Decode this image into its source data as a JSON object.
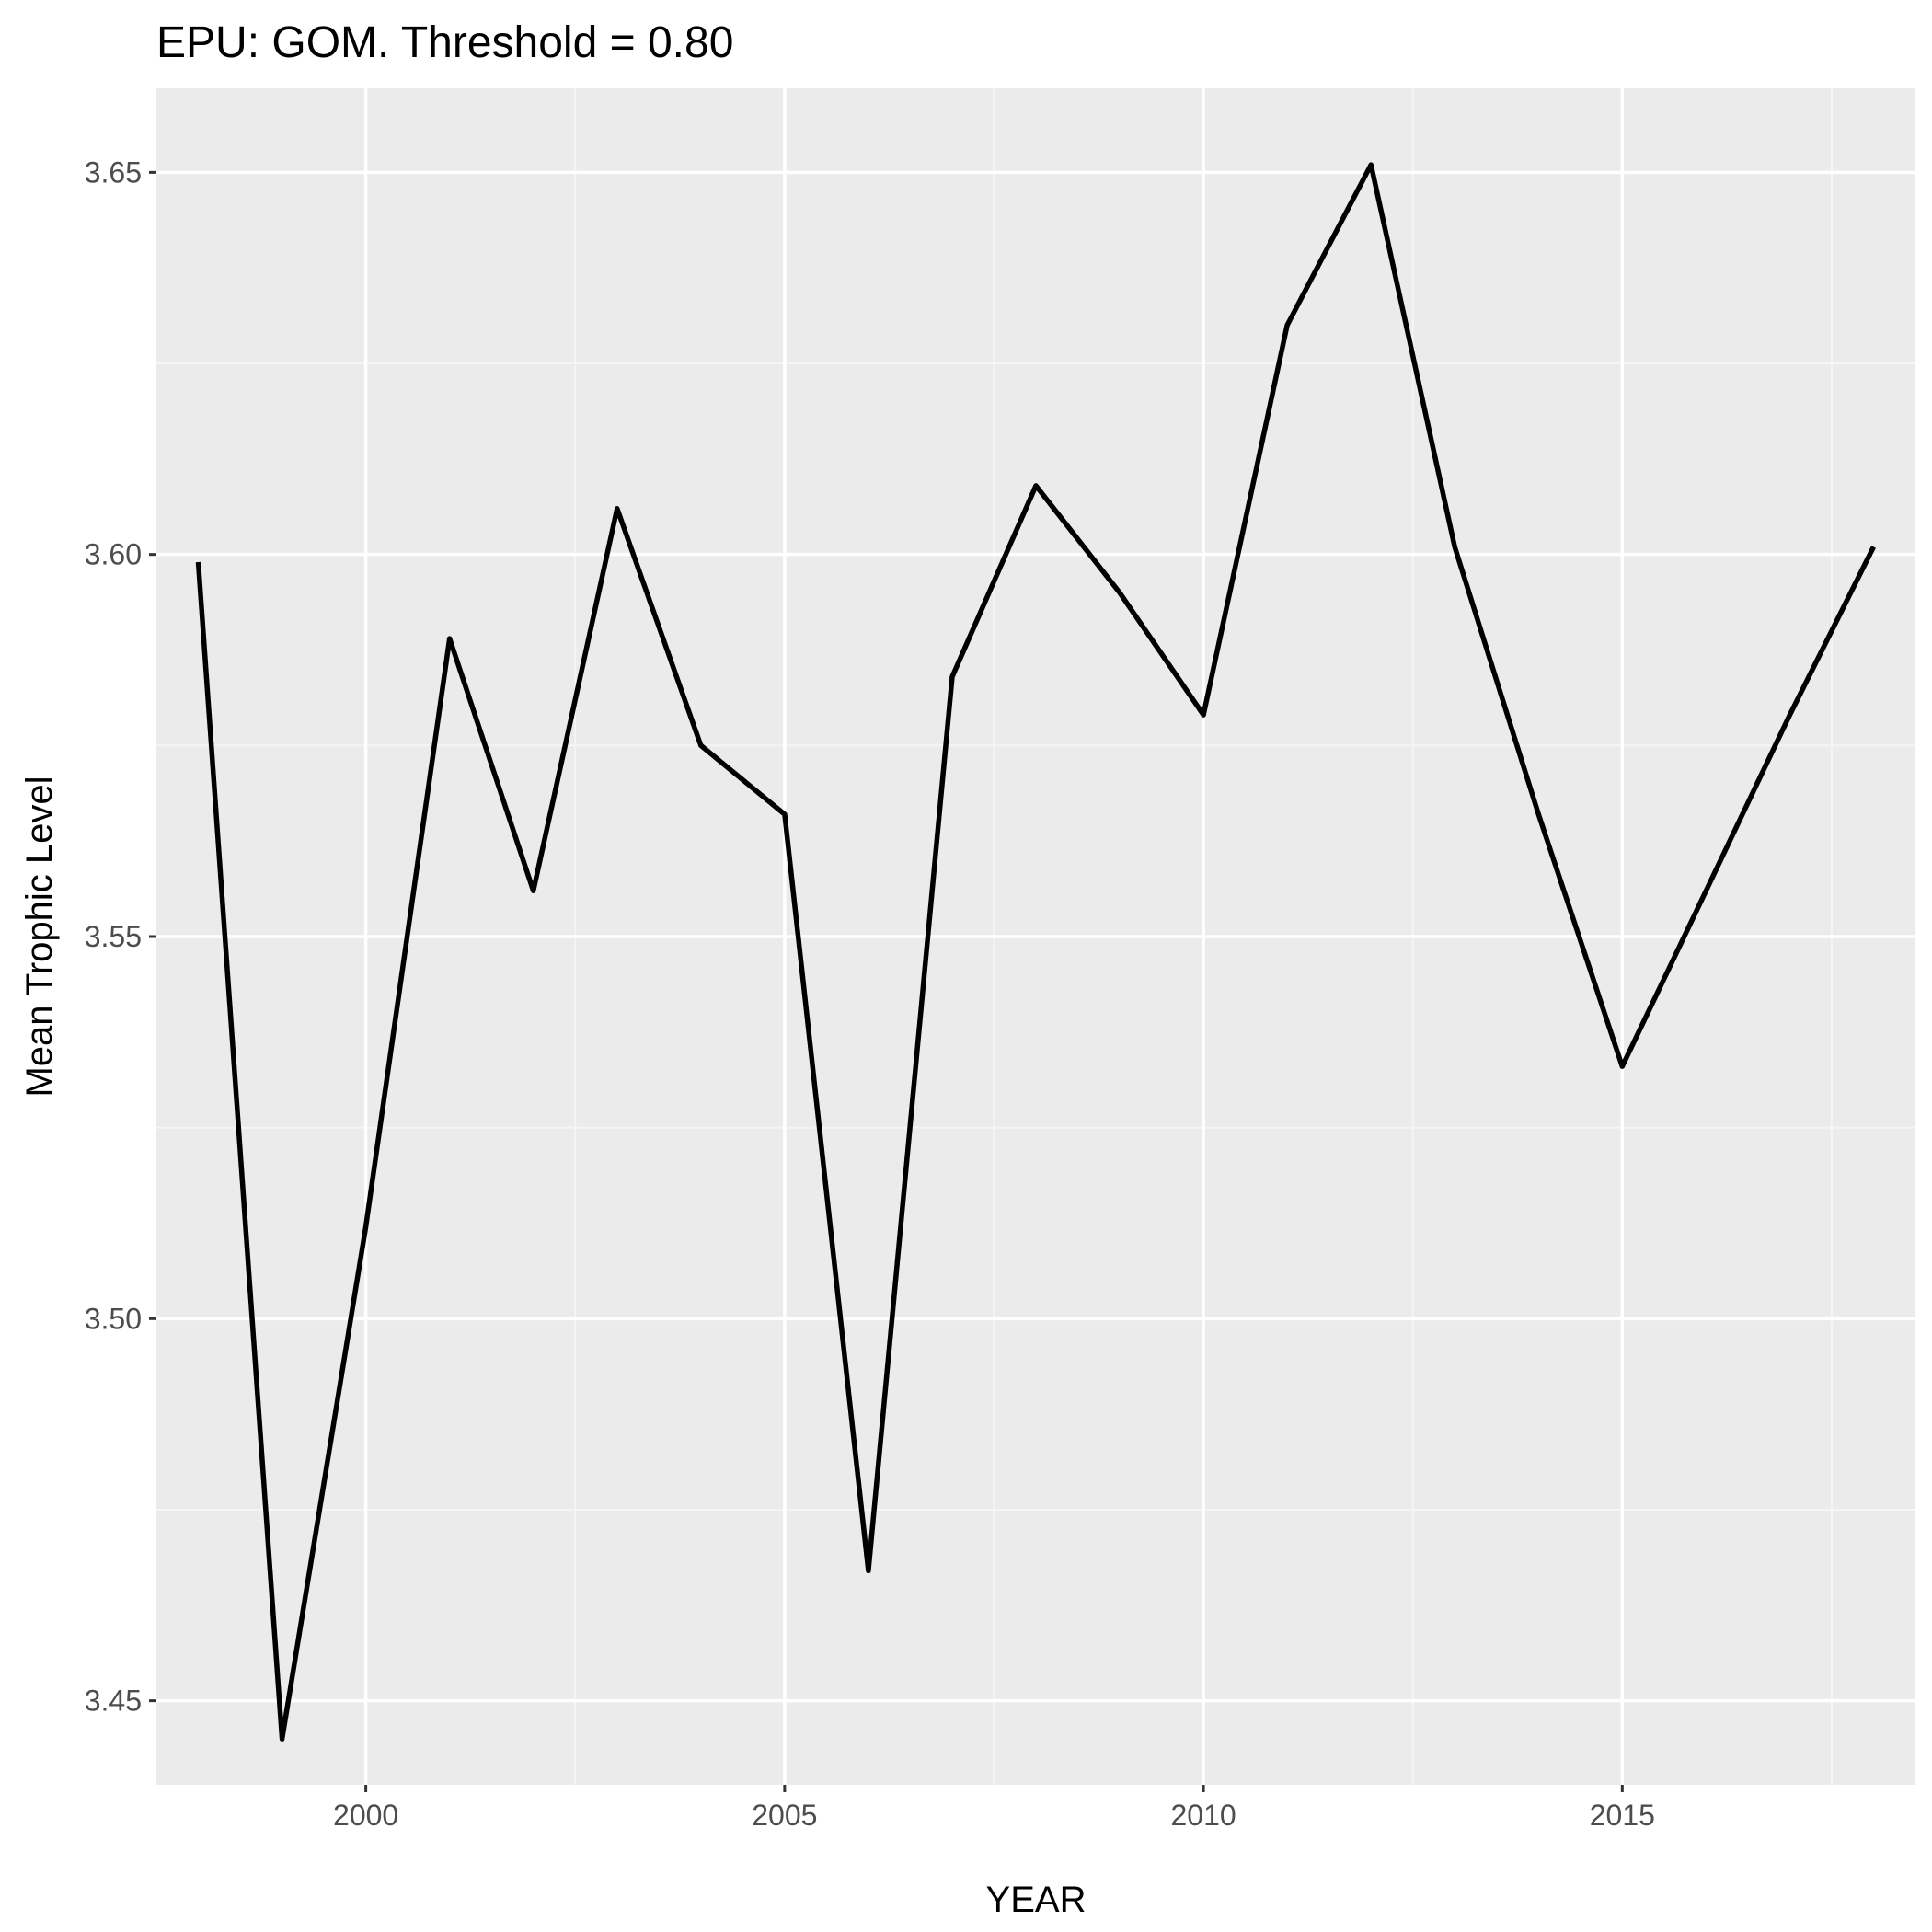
{
  "chart_data": {
    "type": "line",
    "title": "EPU: GOM. Threshold = 0.80",
    "xlabel": "YEAR",
    "ylabel": "Mean Trophic Level",
    "x": [
      1998,
      1999,
      2000,
      2001,
      2002,
      2003,
      2004,
      2005,
      2006,
      2007,
      2008,
      2009,
      2010,
      2011,
      2012,
      2013,
      2014,
      2015,
      2016,
      2017,
      2018
    ],
    "series": [
      {
        "values": [
          3.599,
          3.445,
          3.512,
          3.589,
          3.556,
          3.606,
          3.575,
          3.566,
          3.467,
          3.584,
          3.609,
          3.595,
          3.579,
          3.63,
          3.651,
          3.601,
          3.566,
          3.533,
          3.556,
          3.579,
          3.601
        ]
      }
    ],
    "xlim": [
      1997.5,
      2018.5
    ],
    "ylim": [
      3.439,
      3.661
    ],
    "x_ticks": [
      2000,
      2005,
      2010,
      2015
    ],
    "x_tick_labels": [
      "2000",
      "2005",
      "2010",
      "2015"
    ],
    "y_ticks": [
      3.45,
      3.5,
      3.55,
      3.6,
      3.65
    ],
    "y_tick_labels": [
      "3.45",
      "3.50",
      "3.55",
      "3.60",
      "3.65"
    ],
    "grid": true,
    "legend": "none",
    "colors": {
      "panel_background": "#ebebeb",
      "grid_major": "#ffffff",
      "grid_minor": "#f5f5f5",
      "line": "#000000",
      "tick_label": "#4d4d4d",
      "axis_title": "#000000"
    }
  }
}
